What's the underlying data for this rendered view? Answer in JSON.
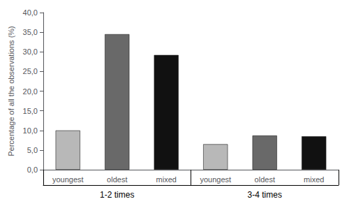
{
  "chart_data": {
    "type": "bar",
    "categories": [
      "youngest",
      "oldest",
      "mixed",
      "youngest",
      "oldest",
      "mixed"
    ],
    "values": [
      10.0,
      34.5,
      29.2,
      6.5,
      8.7,
      8.5
    ],
    "colors": [
      "#b8b8b8",
      "#696969",
      "#111111",
      "#b8b8b8",
      "#696969",
      "#111111"
    ],
    "annotations": [
      "1-2 times",
      "3-4 times"
    ],
    "ylabel": "Percentage of all the observations (%)",
    "ylim": [
      0,
      40
    ],
    "yticks": [
      {
        "value": 0.0,
        "label": "0,0"
      },
      {
        "value": 5.0,
        "label": "5,0"
      },
      {
        "value": 10.0,
        "label": "10,0"
      },
      {
        "value": 15.0,
        "label": "15,0"
      },
      {
        "value": 20.0,
        "label": "20,0"
      },
      {
        "value": 25.0,
        "label": "25,0"
      },
      {
        "value": 30.0,
        "label": "30,0"
      },
      {
        "value": 35.0,
        "label": "35,0"
      },
      {
        "value": 40.0,
        "label": "40,0"
      }
    ],
    "grid": false
  }
}
